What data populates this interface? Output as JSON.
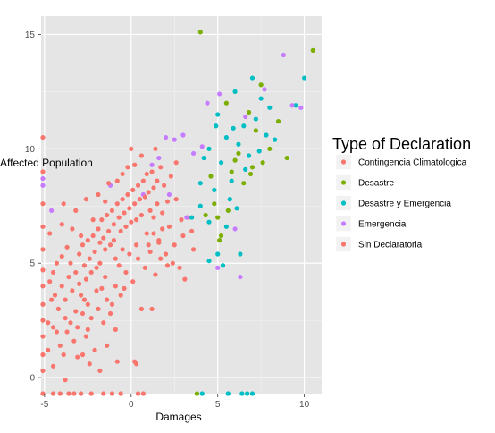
{
  "chart_data": {
    "type": "scatter",
    "title": "",
    "xlabel": "Damages",
    "ylabel": "Affected Population",
    "xlim": [
      -5.2,
      11.0
    ],
    "ylim": [
      -0.7,
      15.8
    ],
    "x_ticks": [
      -5,
      0,
      5,
      10
    ],
    "y_ticks": [
      0,
      5,
      10,
      15
    ],
    "grid": true,
    "legend": {
      "title": "Type of Declaration",
      "position": "right"
    },
    "colors": {
      "panel_bg": "#e5e5e5",
      "grid_major": "#ffffff",
      "grid_minor": "#f2f2f2"
    },
    "series": [
      {
        "name": "Contingencia Climatologica",
        "color": "#f8766d",
        "points": [
          [
            1.2,
            3.0
          ],
          [
            1.4,
            4.5
          ],
          [
            1.6,
            6.0
          ],
          [
            1.8,
            7.2
          ],
          [
            2.0,
            5.4
          ],
          [
            2.2,
            6.6
          ],
          [
            2.4,
            5.0
          ],
          [
            2.6,
            7.8
          ],
          [
            2.8,
            4.8
          ],
          [
            3.0,
            6.2
          ],
          [
            3.1,
            4.3
          ],
          [
            3.3,
            7.0
          ],
          [
            1.0,
            5.8
          ],
          [
            1.5,
            7.6
          ],
          [
            2.5,
            5.8
          ],
          [
            3.5,
            6.4
          ],
          [
            1.3,
            6.3
          ],
          [
            2.1,
            4.9
          ],
          [
            2.9,
            6.9
          ],
          [
            1.7,
            5.2
          ],
          [
            3.6,
            5.6
          ]
        ]
      },
      {
        "name": "Desastre",
        "color": "#7cae00",
        "points": [
          [
            4.0,
            15.1
          ],
          [
            10.5,
            14.3
          ],
          [
            7.5,
            12.8
          ],
          [
            5.5,
            12.0
          ],
          [
            6.0,
            9.5
          ],
          [
            7.0,
            9.2
          ],
          [
            8.0,
            10.0
          ],
          [
            6.5,
            8.5
          ],
          [
            5.0,
            7.0
          ],
          [
            5.2,
            6.2
          ],
          [
            4.8,
            7.6
          ],
          [
            6.8,
            11.6
          ],
          [
            7.2,
            10.8
          ],
          [
            5.8,
            9.0
          ],
          [
            8.5,
            11.2
          ],
          [
            9.0,
            9.6
          ],
          [
            6.2,
            9.8
          ],
          [
            4.6,
            8.8
          ],
          [
            5.6,
            7.3
          ],
          [
            3.8,
            -0.7
          ],
          [
            7.6,
            9.4
          ],
          [
            6.9,
            8.9
          ],
          [
            4.3,
            7.1
          ],
          [
            5.1,
            6.0
          ]
        ]
      },
      {
        "name": "Desastre y Emergencia",
        "color": "#00bfc4",
        "points": [
          [
            4.5,
            10.0
          ],
          [
            5.0,
            11.5
          ],
          [
            5.5,
            10.5
          ],
          [
            6.0,
            12.5
          ],
          [
            6.5,
            11.0
          ],
          [
            7.0,
            13.1
          ],
          [
            7.5,
            12.2
          ],
          [
            8.0,
            11.8
          ],
          [
            9.5,
            11.9
          ],
          [
            10.0,
            13.1
          ],
          [
            4.2,
            9.6
          ],
          [
            4.8,
            8.2
          ],
          [
            5.2,
            9.4
          ],
          [
            5.8,
            8.6
          ],
          [
            6.2,
            10.2
          ],
          [
            6.8,
            9.7
          ],
          [
            7.2,
            11.3
          ],
          [
            7.8,
            10.6
          ],
          [
            4.0,
            7.5
          ],
          [
            4.5,
            6.8
          ],
          [
            5.0,
            5.4
          ],
          [
            5.5,
            6.6
          ],
          [
            3.5,
            7.0
          ],
          [
            4.0,
            8.5
          ],
          [
            4.5,
            5.1
          ],
          [
            5.3,
            4.9
          ],
          [
            6.3,
            5.4
          ],
          [
            5.7,
            7.8
          ],
          [
            6.6,
            9.1
          ],
          [
            7.4,
            9.9
          ],
          [
            8.3,
            10.4
          ],
          [
            6.4,
            -0.7
          ],
          [
            6.7,
            -0.7
          ],
          [
            7.0,
            -0.7
          ],
          [
            5.6,
            -0.7
          ],
          [
            4.1,
            -0.7
          ],
          [
            4.9,
            11.0
          ],
          [
            5.9,
            10.9
          ],
          [
            6.1,
            7.4
          ]
        ]
      },
      {
        "name": "Emergencia",
        "color": "#c77cff",
        "points": [
          [
            8.8,
            14.1
          ],
          [
            9.3,
            11.9
          ],
          [
            9.8,
            11.8
          ],
          [
            7.7,
            12.6
          ],
          [
            2.0,
            10.5
          ],
          [
            2.5,
            10.4
          ],
          [
            3.0,
            10.6
          ],
          [
            4.1,
            10.1
          ],
          [
            5.1,
            12.4
          ],
          [
            0.7,
            8.0
          ],
          [
            -1.2,
            8.4
          ],
          [
            -4.6,
            7.3
          ],
          [
            1.2,
            9.3
          ],
          [
            1.6,
            9.6
          ],
          [
            2.2,
            8.0
          ],
          [
            3.6,
            9.8
          ],
          [
            -5.1,
            8.4
          ],
          [
            -5.1,
            8.7
          ],
          [
            5.0,
            4.8
          ],
          [
            6.3,
            4.4
          ],
          [
            6.0,
            6.5
          ],
          [
            3.2,
            7.0
          ],
          [
            4.4,
            12.0
          ],
          [
            6.6,
            11.4
          ]
        ]
      },
      {
        "name": "Sin Declaratoria",
        "color": "#f8766d",
        "points": [
          [
            -5.1,
            10.5
          ],
          [
            -5.1,
            9.0
          ],
          [
            -5.1,
            7.6
          ],
          [
            -5.1,
            6.6
          ],
          [
            -5.1,
            5.6
          ],
          [
            -5.1,
            4.7
          ],
          [
            -5.1,
            4.0
          ],
          [
            -5.1,
            3.2
          ],
          [
            -5.1,
            2.5
          ],
          [
            -5.1,
            1.8
          ],
          [
            -5.1,
            1.0
          ],
          [
            -5.1,
            0.3
          ],
          [
            -5.1,
            -0.7
          ],
          [
            -4.8,
            1.2
          ],
          [
            -4.8,
            2.4
          ],
          [
            -4.6,
            3.4
          ],
          [
            -4.5,
            4.6
          ],
          [
            -4.5,
            0.5
          ],
          [
            -4.2,
            3.0
          ],
          [
            -4.0,
            5.3
          ],
          [
            -4.0,
            4.0
          ],
          [
            -3.8,
            3.4
          ],
          [
            -3.8,
            2.6
          ],
          [
            -3.6,
            4.4
          ],
          [
            -3.5,
            5.0
          ],
          [
            -3.4,
            3.8
          ],
          [
            -3.2,
            4.6
          ],
          [
            -3.2,
            2.9
          ],
          [
            -3.0,
            5.4
          ],
          [
            -3.0,
            4.1
          ],
          [
            -2.9,
            3.6
          ],
          [
            -2.8,
            5.8
          ],
          [
            -2.7,
            4.9
          ],
          [
            -2.6,
            4.3
          ],
          [
            -2.5,
            6.0
          ],
          [
            -2.5,
            3.2
          ],
          [
            -2.4,
            5.2
          ],
          [
            -2.3,
            4.6
          ],
          [
            -2.2,
            6.2
          ],
          [
            -2.1,
            5.5
          ],
          [
            -2.0,
            4.8
          ],
          [
            -2.0,
            3.8
          ],
          [
            -1.9,
            6.5
          ],
          [
            -1.8,
            5.9
          ],
          [
            -1.8,
            5.0
          ],
          [
            -1.7,
            6.9
          ],
          [
            -1.6,
            6.1
          ],
          [
            -1.5,
            5.6
          ],
          [
            -1.5,
            4.4
          ],
          [
            -1.4,
            7.1
          ],
          [
            -1.3,
            6.4
          ],
          [
            -1.2,
            5.8
          ],
          [
            -1.1,
            7.3
          ],
          [
            -1.0,
            6.7
          ],
          [
            -1.0,
            6.0
          ],
          [
            -0.9,
            5.2
          ],
          [
            -0.8,
            7.6
          ],
          [
            -0.7,
            7.0
          ],
          [
            -0.6,
            6.4
          ],
          [
            -0.5,
            7.8
          ],
          [
            -0.5,
            5.6
          ],
          [
            -0.4,
            7.2
          ],
          [
            -0.3,
            6.6
          ],
          [
            -0.2,
            8.0
          ],
          [
            -0.1,
            7.4
          ],
          [
            0.0,
            6.8
          ],
          [
            0.1,
            8.2
          ],
          [
            0.2,
            7.6
          ],
          [
            0.3,
            6.9
          ],
          [
            0.4,
            8.4
          ],
          [
            0.5,
            7.8
          ],
          [
            0.6,
            7.1
          ],
          [
            0.7,
            8.6
          ],
          [
            0.8,
            7.9
          ],
          [
            0.9,
            8.9
          ],
          [
            1.0,
            8.1
          ],
          [
            1.1,
            7.3
          ],
          [
            1.2,
            9.0
          ],
          [
            1.3,
            8.3
          ],
          [
            1.5,
            8.6
          ],
          [
            1.7,
            9.2
          ],
          [
            1.9,
            8.4
          ],
          [
            2.1,
            7.7
          ],
          [
            -4.4,
            3.6
          ],
          [
            -4.3,
            2.0
          ],
          [
            -4.1,
            1.4
          ],
          [
            -3.9,
            1.0
          ],
          [
            -3.7,
            2.0
          ],
          [
            -3.3,
            1.6
          ],
          [
            -3.1,
            2.2
          ],
          [
            -2.8,
            2.8
          ],
          [
            -2.6,
            1.8
          ],
          [
            -2.3,
            2.6
          ],
          [
            -2.1,
            1.2
          ],
          [
            -1.9,
            3.0
          ],
          [
            -1.6,
            2.4
          ],
          [
            -1.4,
            3.4
          ],
          [
            -1.2,
            2.8
          ],
          [
            -0.9,
            4.0
          ],
          [
            -0.6,
            3.6
          ],
          [
            -0.3,
            4.6
          ],
          [
            0.1,
            4.2
          ],
          [
            0.4,
            5.2
          ],
          [
            0.8,
            4.8
          ],
          [
            1.1,
            5.5
          ],
          [
            1.6,
            5.9
          ],
          [
            -3.9,
            7.6
          ],
          [
            -3.2,
            7.3
          ],
          [
            -2.6,
            7.8
          ],
          [
            -1.9,
            8.0
          ],
          [
            -1.3,
            8.5
          ],
          [
            -0.5,
            8.9
          ],
          [
            0.2,
            9.3
          ],
          [
            -2.8,
            1.0
          ],
          [
            -2.4,
            0.6
          ],
          [
            -1.4,
            1.4
          ],
          [
            -0.8,
            0.7
          ],
          [
            0.3,
            0.6
          ],
          [
            0.3,
            5.8
          ],
          [
            -0.7,
            4.9
          ],
          [
            -1.7,
            3.9
          ],
          [
            -2.7,
            3.4
          ],
          [
            -3.5,
            2.4
          ],
          [
            -4.5,
            2.2
          ],
          [
            -4.5,
            -0.7
          ],
          [
            -3.6,
            -0.7
          ],
          [
            -2.9,
            -0.7
          ],
          [
            -2.3,
            -0.7
          ],
          [
            -1.6,
            -0.7
          ],
          [
            -0.6,
            -0.7
          ],
          [
            0.4,
            -0.7
          ],
          [
            0.7,
            -0.7
          ],
          [
            -4.1,
            -0.7
          ],
          [
            -3.3,
            -0.7
          ],
          [
            -1.1,
            -0.7
          ],
          [
            0.2,
            0.7
          ],
          [
            -0.4,
            3.9
          ],
          [
            1.3,
            7.0
          ],
          [
            1.8,
            6.5
          ],
          [
            1.4,
            10.0
          ],
          [
            0.6,
            9.7
          ],
          [
            -0.2,
            9.2
          ],
          [
            2.3,
            8.8
          ],
          [
            2.6,
            9.4
          ],
          [
            0.0,
            10.0
          ],
          [
            -0.8,
            8.6
          ],
          [
            -3.7,
            5.7
          ],
          [
            -4.3,
            5.0
          ],
          [
            -4.7,
            6.3
          ],
          [
            -4.7,
            4.2
          ],
          [
            -4.0,
            6.7
          ],
          [
            -3.4,
            6.5
          ],
          [
            -2.2,
            6.9
          ],
          [
            -1.5,
            7.7
          ],
          [
            -2.9,
            6.2
          ],
          [
            -1.1,
            3.2
          ],
          [
            -0.1,
            5.4
          ],
          [
            0.9,
            6.3
          ],
          [
            -2.5,
            2.1
          ],
          [
            -3.8,
            -0.1
          ],
          [
            -3.1,
            0.9
          ],
          [
            -1.8,
            0.3
          ],
          [
            -0.9,
            2.1
          ],
          [
            0.6,
            3.0
          ]
        ]
      }
    ]
  }
}
